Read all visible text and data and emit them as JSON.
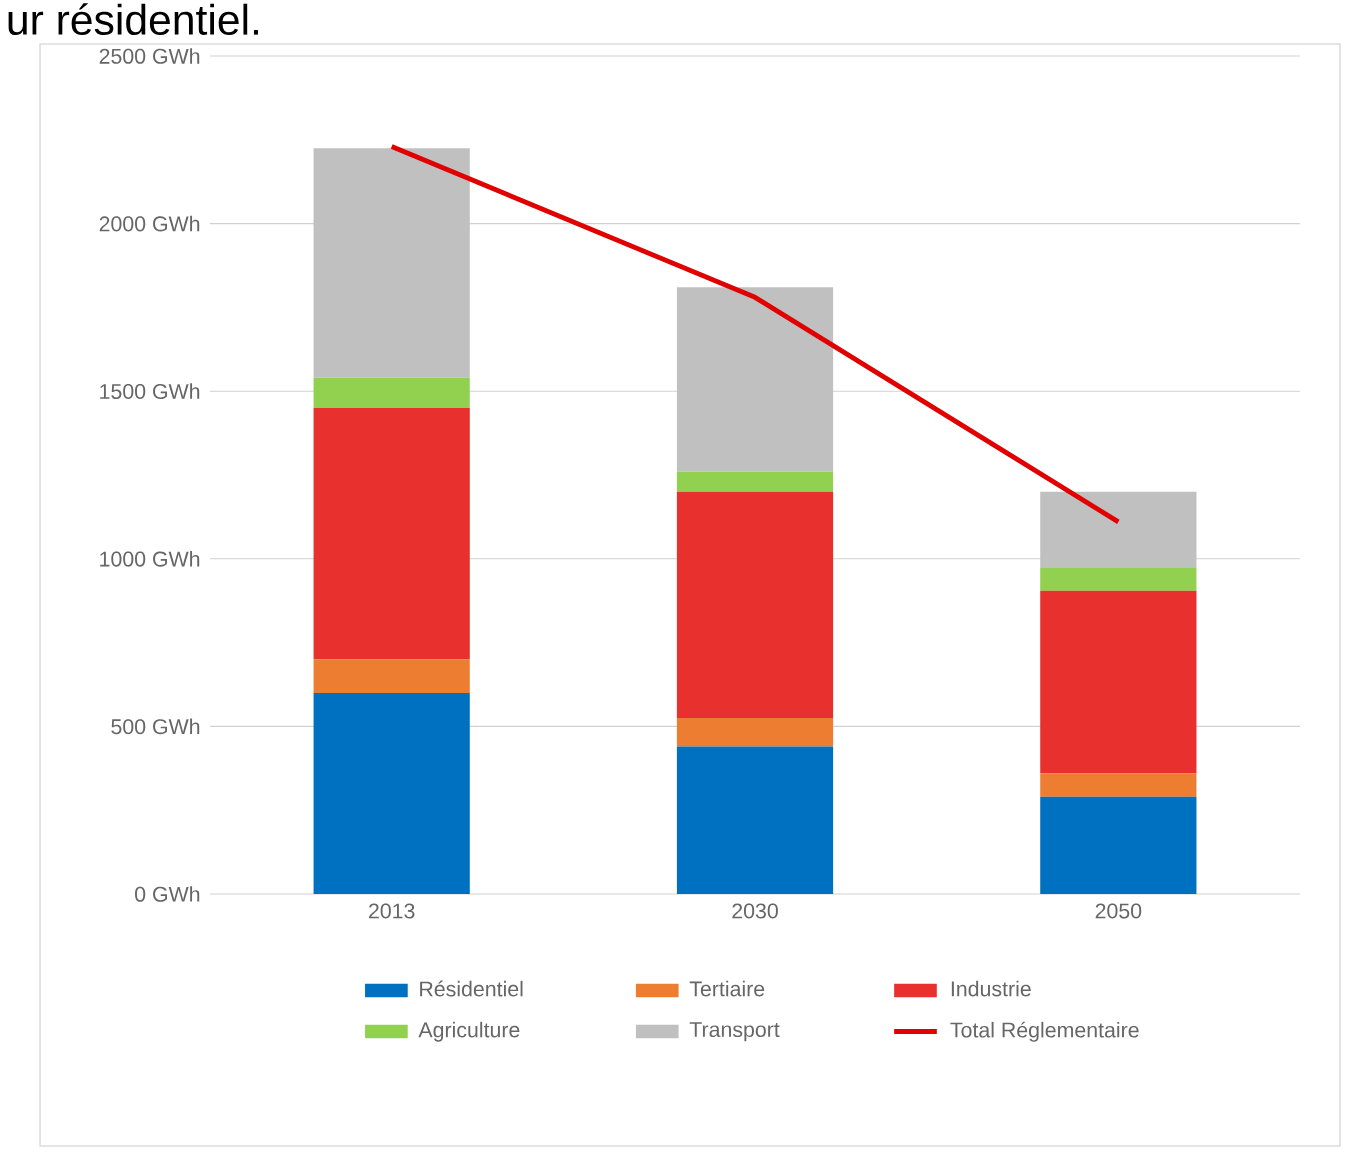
{
  "chart_data": {
    "type": "bar",
    "stacked": true,
    "annotations": [
      "ur résidentiel."
    ],
    "categories": [
      "2013",
      "2030",
      "2050"
    ],
    "series": [
      {
        "name": "Résidentiel",
        "color": "#0070c0",
        "values": [
          600,
          440,
          290
        ]
      },
      {
        "name": "Tertiaire",
        "color": "#ed7d31",
        "values": [
          100,
          85,
          70
        ]
      },
      {
        "name": "Industrie",
        "color": "#e8312f",
        "values": [
          750,
          675,
          545
        ]
      },
      {
        "name": "Agriculture",
        "color": "#92d050",
        "values": [
          90,
          60,
          70
        ]
      },
      {
        "name": "Transport",
        "color": "#c0c0c0",
        "values": [
          685,
          550,
          225
        ]
      },
      {
        "name": "Total Réglementaire",
        "type": "line",
        "color": "#e00000",
        "values": [
          2230,
          1780,
          1110
        ]
      }
    ],
    "ylim": [
      0,
      2500
    ],
    "yticks": [
      {
        "value": 0,
        "label": "0 GWh"
      },
      {
        "value": 500,
        "label": "500 GWh"
      },
      {
        "value": 1000,
        "label": "1000 GWh"
      },
      {
        "value": 1500,
        "label": "1500 GWh"
      },
      {
        "value": 2000,
        "label": "2000 GWh"
      },
      {
        "value": 2500,
        "label": "2500 GWh"
      }
    ],
    "grid": "y",
    "legend": "bottom",
    "marker": "none",
    "line_style": "solid"
  }
}
